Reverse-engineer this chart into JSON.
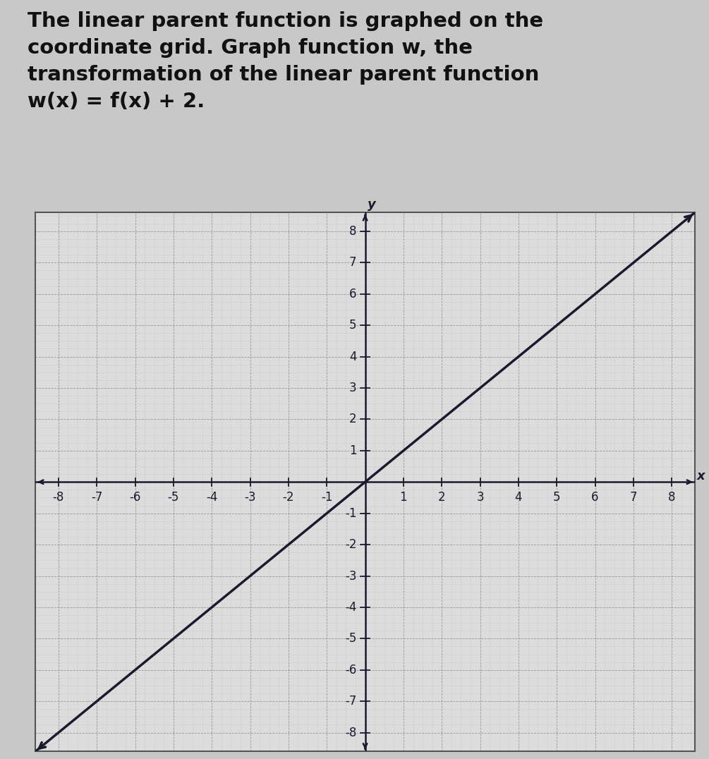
{
  "title_lines": [
    "The linear parent function is graphed on the",
    "coordinate grid. Graph function w, the",
    "transformation of the linear parent function",
    "w(x) = f(x) + 2."
  ],
  "xmin": -8,
  "xmax": 8,
  "ymin": -8,
  "ymax": 8,
  "outer_bg": "#c8c8c8",
  "plot_bg": "#dcdcdc",
  "grid_major_color": "#888888",
  "grid_minor_color": "#aaaaaa",
  "line_color": "#1a1a2e",
  "line_width": 2.5,
  "axis_color": "#1a1a2e",
  "tick_label_color": "#1a1a2e",
  "tick_fontsize": 12,
  "title_fontsize": 21,
  "title_color": "#111111",
  "slope": 1,
  "intercept": 0,
  "major_ticks": [
    -8,
    -7,
    -6,
    -5,
    -4,
    -3,
    -2,
    -1,
    1,
    2,
    3,
    4,
    5,
    6,
    7,
    8
  ]
}
